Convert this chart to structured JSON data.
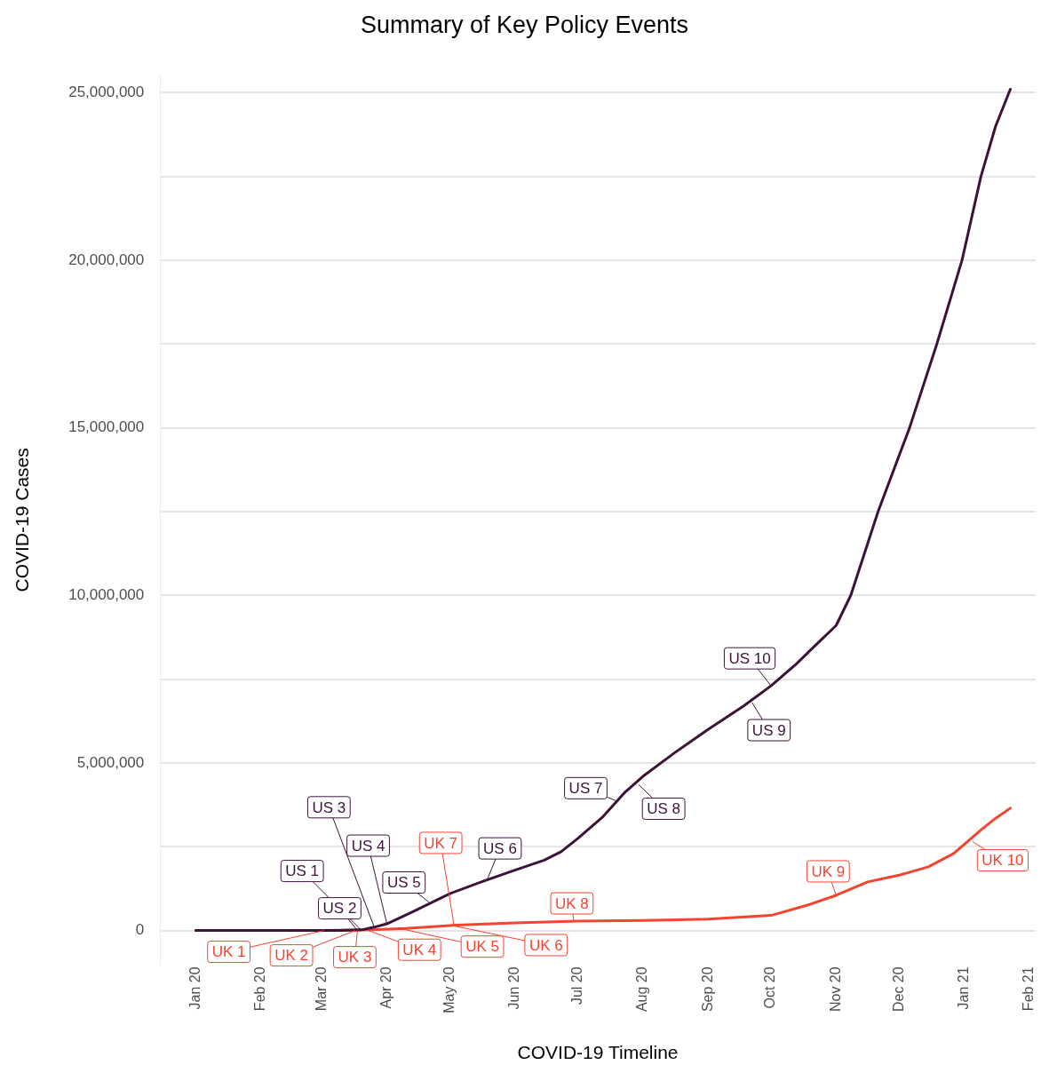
{
  "chart_data": {
    "type": "line",
    "title": "Summary of Key Policy Events",
    "xlabel": "COVID-19 Timeline",
    "ylabel": "COVID-19 Cases",
    "xlim": [
      "2019-12-15",
      "2021-02-04"
    ],
    "xticks": [
      {
        "value": "2020-01-01",
        "label": "Jan 20"
      },
      {
        "value": "2020-02-01",
        "label": "Feb 20"
      },
      {
        "value": "2020-03-01",
        "label": "Mar 20"
      },
      {
        "value": "2020-04-01",
        "label": "Apr 20"
      },
      {
        "value": "2020-05-01",
        "label": "May 20"
      },
      {
        "value": "2020-06-01",
        "label": "Jun 20"
      },
      {
        "value": "2020-07-01",
        "label": "Jul 20"
      },
      {
        "value": "2020-08-01",
        "label": "Aug 20"
      },
      {
        "value": "2020-09-01",
        "label": "Sep 20"
      },
      {
        "value": "2020-10-01",
        "label": "Oct 20"
      },
      {
        "value": "2020-11-01",
        "label": "Nov 20"
      },
      {
        "value": "2020-12-01",
        "label": "Dec 20"
      },
      {
        "value": "2021-01-01",
        "label": "Jan 21"
      },
      {
        "value": "2021-02-01",
        "label": "Feb 21"
      }
    ],
    "ylim": [
      -1000000,
      25500000
    ],
    "yticks": [
      0,
      {
        "value": 2500000,
        "label": null
      },
      {
        "value": 5000000,
        "label": "5,000,000"
      },
      {
        "value": 7500000,
        "label": null
      },
      {
        "value": 10000000,
        "label": "10,000,000"
      },
      {
        "value": 12500000,
        "label": null
      },
      {
        "value": 15000000,
        "label": "15,000,000"
      },
      {
        "value": 17500000,
        "label": null
      },
      {
        "value": 20000000,
        "label": "20,000,000"
      },
      {
        "value": 22500000,
        "label": null
      },
      {
        "value": 25000000,
        "label": "25,000,000"
      }
    ],
    "grid": "y",
    "legend": false,
    "line_style": "solid",
    "marker": "none",
    "series": [
      {
        "color": "#3d1237",
        "x": [
          "2020-01-01",
          "2020-03-10",
          "2020-03-20",
          "2020-03-26",
          "2020-04-01",
          "2020-04-13",
          "2020-05-01",
          "2020-05-16",
          "2020-06-01",
          "2020-06-15",
          "2020-06-23",
          "2020-07-01",
          "2020-07-13",
          "2020-07-23",
          "2020-08-01",
          "2020-08-16",
          "2020-09-01",
          "2020-09-18",
          "2020-10-01",
          "2020-10-13",
          "2020-10-22",
          "2020-11-01",
          "2020-11-08",
          "2020-11-21",
          "2020-12-06",
          "2020-12-19",
          "2020-12-31",
          "2021-01-09",
          "2021-01-16",
          "2021-01-23"
        ],
        "values": [
          0,
          0,
          20000,
          100000,
          200000,
          550000,
          1100000,
          1450000,
          1800000,
          2100000,
          2350000,
          2750000,
          3400000,
          4100000,
          4600000,
          5300000,
          6000000,
          6700000,
          7300000,
          7950000,
          8500000,
          9100000,
          10000000,
          12500000,
          15000000,
          17500000,
          20000000,
          22500000,
          24000000,
          25100000
        ]
      },
      {
        "color": "#f4432f",
        "x": [
          "2020-01-01",
          "2020-03-01",
          "2020-03-25",
          "2020-04-10",
          "2020-05-01",
          "2020-06-01",
          "2020-07-01",
          "2020-08-01",
          "2020-09-01",
          "2020-10-01",
          "2020-10-18",
          "2020-11-01",
          "2020-11-16",
          "2020-12-01",
          "2020-12-15",
          "2020-12-27",
          "2021-01-09",
          "2021-01-16",
          "2021-01-23"
        ],
        "values": [
          0,
          0,
          20000,
          60000,
          150000,
          230000,
          280000,
          300000,
          340000,
          450000,
          750000,
          1050000,
          1450000,
          1650000,
          1900000,
          2300000,
          3000000,
          3350000,
          3650000
        ]
      }
    ],
    "annotations": [
      {
        "text": "US 1",
        "x": "2020-03-20",
        "y": 0
      },
      {
        "text": "US 2",
        "x": "2020-03-18",
        "y": 0
      },
      {
        "text": "US 3",
        "x": "2020-03-26",
        "y": 100000
      },
      {
        "text": "US 4",
        "x": "2020-04-01",
        "y": 200000
      },
      {
        "text": "US 5",
        "x": "2020-04-21",
        "y": 850000
      },
      {
        "text": "US 6",
        "x": "2020-05-19",
        "y": 1550000
      },
      {
        "text": "US 7",
        "x": "2020-07-20",
        "y": 3850000
      },
      {
        "text": "US 8",
        "x": "2020-07-30",
        "y": 4350000
      },
      {
        "text": "US 9",
        "x": "2020-09-22",
        "y": 6800000
      },
      {
        "text": "US 10",
        "x": "2020-10-01",
        "y": 7300000
      },
      {
        "text": "UK 1",
        "x": "2020-03-02",
        "y": 0
      },
      {
        "text": "UK 2",
        "x": "2020-03-17",
        "y": 0
      },
      {
        "text": "UK 3",
        "x": "2020-03-18",
        "y": 0
      },
      {
        "text": "UK 4",
        "x": "2020-03-23",
        "y": 10000
      },
      {
        "text": "UK 5",
        "x": "2020-04-08",
        "y": 50000
      },
      {
        "text": "UK 6",
        "x": "2020-05-02",
        "y": 150000
      },
      {
        "text": "UK 7",
        "x": "2020-05-03",
        "y": 150000
      },
      {
        "text": "UK 8",
        "x": "2020-06-29",
        "y": 280000
      },
      {
        "text": "UK 9",
        "x": "2020-11-01",
        "y": 1050000
      },
      {
        "text": "UK 10",
        "x": "2021-01-05",
        "y": 2650000
      }
    ]
  }
}
